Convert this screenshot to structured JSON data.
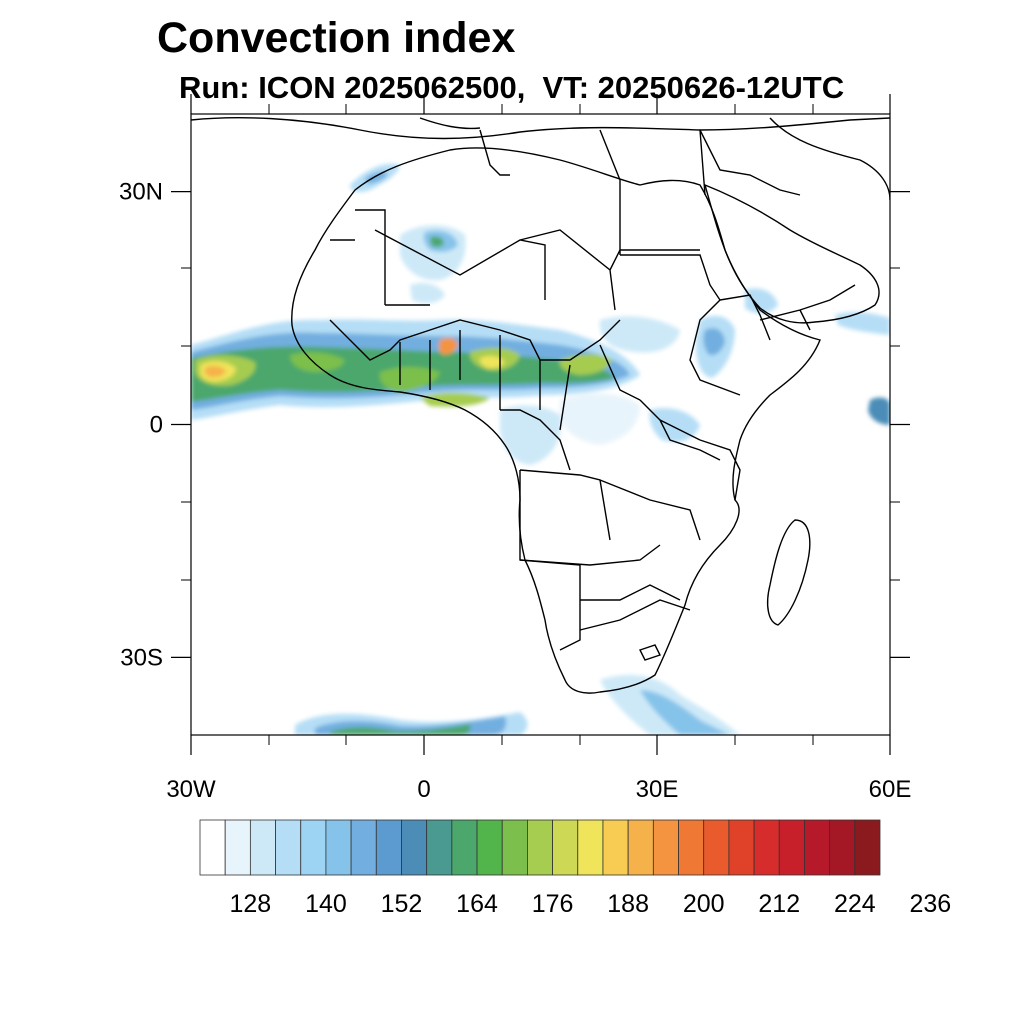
{
  "title": "Convection index",
  "subtitle": "Run: ICON 2025062500,  VT: 20250626-12UTC",
  "map": {
    "lon_range": [
      -30,
      60
    ],
    "lat_range": [
      -40,
      40
    ],
    "lat_ticks": [
      {
        "value": 30,
        "label": "30N"
      },
      {
        "value": 0,
        "label": "0"
      },
      {
        "value": -30,
        "label": "30S"
      }
    ],
    "lon_ticks": [
      {
        "value": -30,
        "label": "30W"
      },
      {
        "value": 0,
        "label": "0"
      },
      {
        "value": 30,
        "label": "30E"
      },
      {
        "value": 60,
        "label": "60E"
      }
    ]
  },
  "colorbar": {
    "colors": [
      "#ffffff",
      "#e8f4fb",
      "#cde9f8",
      "#b5def6",
      "#9dd3f3",
      "#86c3ea",
      "#72afe0",
      "#5c9bd0",
      "#4c8db8",
      "#4a9a92",
      "#4ba76c",
      "#52b54b",
      "#7cbf4c",
      "#a6cc50",
      "#cdd955",
      "#efe45a",
      "#f8cb52",
      "#f6b24a",
      "#f49440",
      "#ef7835",
      "#e95a2d",
      "#df4129",
      "#d62c2b",
      "#c8202b",
      "#b6192a",
      "#a41826",
      "#8b1a1e"
    ],
    "labels": [
      "128",
      "140",
      "152",
      "164",
      "176",
      "188",
      "200",
      "212",
      "224",
      "236"
    ]
  }
}
